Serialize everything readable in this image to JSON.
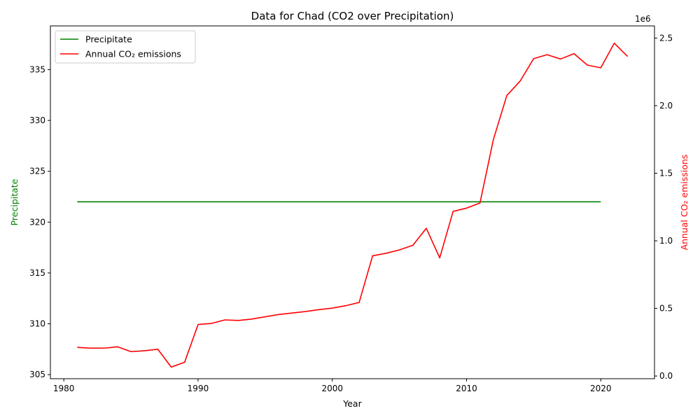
{
  "chart_data": {
    "type": "line",
    "title": "Data for Chad (CO2 over Precipitation)",
    "xlabel": "Year",
    "ylabel_left": "Precipitate",
    "ylabel_right": "Annual CO₂ emissions",
    "right_axis_offset_label": "1e6",
    "xlim": [
      1979,
      2024
    ],
    "ylim_left": [
      304.6,
      339.3
    ],
    "ylim_right": [
      -20000,
      2590000
    ],
    "x_ticks": [
      1980,
      1990,
      2000,
      2010,
      2020
    ],
    "y_ticks_left": [
      305,
      310,
      315,
      320,
      325,
      330,
      335
    ],
    "y_ticks_right": [
      0,
      500000,
      1000000,
      1500000,
      2000000,
      2500000
    ],
    "y_ticks_right_labels": [
      "0.0",
      "0.5",
      "1.0",
      "1.5",
      "2.0",
      "2.5"
    ],
    "grid": false,
    "legend_position": "upper left",
    "series": [
      {
        "name": "Precipitate",
        "axis": "left",
        "color": "#008000",
        "x": [
          1981,
          1982,
          1983,
          1984,
          1985,
          1986,
          1987,
          1988,
          1989,
          1990,
          1991,
          1992,
          1993,
          1994,
          1995,
          1996,
          1997,
          1998,
          1999,
          2000,
          2001,
          2002,
          2003,
          2004,
          2005,
          2006,
          2007,
          2008,
          2009,
          2010,
          2011,
          2012,
          2013,
          2014,
          2015,
          2016,
          2017,
          2018,
          2019,
          2020
        ],
        "values": [
          322,
          322,
          322,
          322,
          322,
          322,
          322,
          322,
          322,
          322,
          322,
          322,
          322,
          322,
          322,
          322,
          322,
          322,
          322,
          322,
          322,
          322,
          322,
          322,
          322,
          322,
          322,
          322,
          322,
          322,
          322,
          322,
          322,
          322,
          322,
          322,
          322,
          322,
          322,
          322
        ]
      },
      {
        "name": "Annual CO₂ emissions",
        "axis": "right",
        "color": "#ff0000",
        "x": [
          1981,
          1982,
          1983,
          1984,
          1985,
          1986,
          1987,
          1988,
          1989,
          1990,
          1991,
          1992,
          1993,
          1994,
          1995,
          1996,
          1997,
          1998,
          1999,
          2000,
          2001,
          2002,
          2003,
          2004,
          2005,
          2006,
          2007,
          2008,
          2009,
          2010,
          2011,
          2012,
          2013,
          2014,
          2015,
          2016,
          2017,
          2018,
          2019,
          2020,
          2021,
          2022
        ],
        "values": [
          212000,
          206000,
          206000,
          216000,
          180000,
          187000,
          198000,
          66000,
          102000,
          381000,
          389000,
          415000,
          411000,
          421000,
          438000,
          455000,
          466000,
          477000,
          491000,
          502000,
          520000,
          544000,
          889000,
          908000,
          933000,
          967000,
          1093000,
          874000,
          1218000,
          1242000,
          1280000,
          1750000,
          2075000,
          2183000,
          2348000,
          2377000,
          2345000,
          2385000,
          2300000,
          2280000,
          2462000,
          2364000
        ]
      }
    ]
  }
}
